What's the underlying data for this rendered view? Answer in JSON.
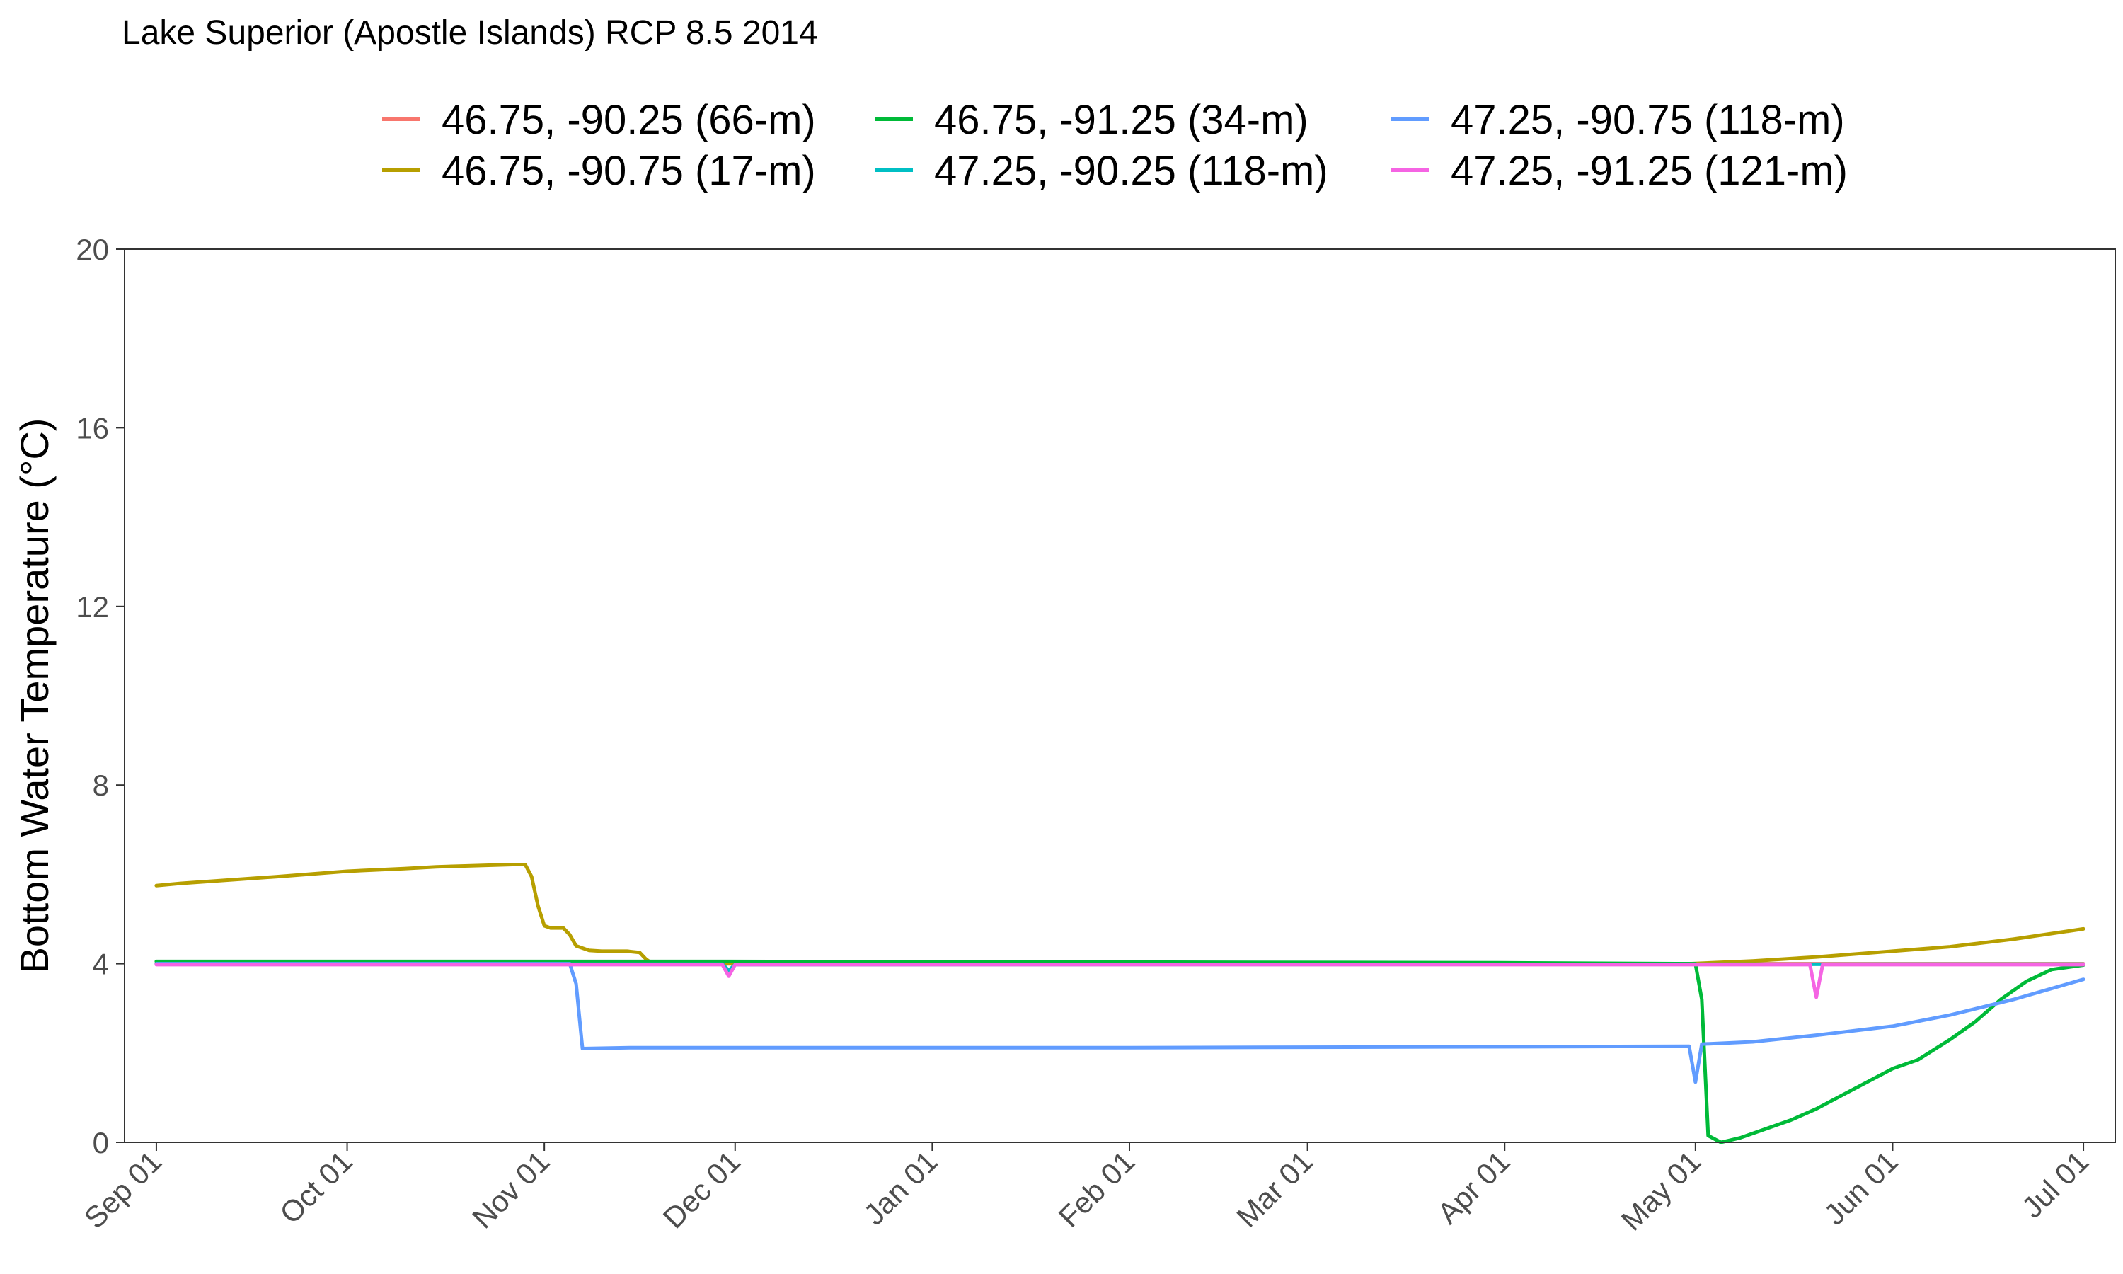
{
  "chart_data": {
    "type": "line",
    "title": "Lake Superior (Apostle Islands) RCP 8.5 2014",
    "xlabel": "",
    "ylabel": "Bottom Water Temperature (°C)",
    "xlim": [
      "2014-08-27",
      "2015-07-06"
    ],
    "ylim": [
      0,
      20
    ],
    "yticks": [
      0,
      4,
      8,
      12,
      16,
      20
    ],
    "xticks": [
      {
        "date": "2014-09-01",
        "label": "Sep 01"
      },
      {
        "date": "2014-10-01",
        "label": "Oct 01"
      },
      {
        "date": "2014-11-01",
        "label": "Nov 01"
      },
      {
        "date": "2014-12-01",
        "label": "Dec 01"
      },
      {
        "date": "2015-01-01",
        "label": "Jan 01"
      },
      {
        "date": "2015-02-01",
        "label": "Feb 01"
      },
      {
        "date": "2015-03-01",
        "label": "Mar 01"
      },
      {
        "date": "2015-04-01",
        "label": "Apr 01"
      },
      {
        "date": "2015-05-01",
        "label": "May 01"
      },
      {
        "date": "2015-06-01",
        "label": "Jun 01"
      },
      {
        "date": "2015-07-01",
        "label": "Jul 01"
      }
    ],
    "grid": false,
    "legend_position": "top",
    "series": [
      {
        "name": "46.75, -90.25 (66-m)",
        "color": "#F8766D",
        "points": [
          [
            "2014-09-01",
            4.0
          ],
          [
            "2015-07-01",
            4.0
          ]
        ]
      },
      {
        "name": "46.75, -90.75 (17-m)",
        "color": "#B79F00",
        "points": [
          [
            "2014-09-01",
            5.75
          ],
          [
            "2014-09-05",
            5.8
          ],
          [
            "2014-09-10",
            5.85
          ],
          [
            "2014-09-20",
            5.95
          ],
          [
            "2014-10-01",
            6.07
          ],
          [
            "2014-10-10",
            6.13
          ],
          [
            "2014-10-15",
            6.17
          ],
          [
            "2014-10-20",
            6.19
          ],
          [
            "2014-10-27",
            6.22
          ],
          [
            "2014-10-29",
            6.22
          ],
          [
            "2014-10-30",
            5.95
          ],
          [
            "2014-10-31",
            5.3
          ],
          [
            "2014-11-01",
            4.85
          ],
          [
            "2014-11-02",
            4.8
          ],
          [
            "2014-11-03",
            4.8
          ],
          [
            "2014-11-04",
            4.8
          ],
          [
            "2014-11-05",
            4.65
          ],
          [
            "2014-11-06",
            4.4
          ],
          [
            "2014-11-08",
            4.3
          ],
          [
            "2014-11-10",
            4.28
          ],
          [
            "2014-11-14",
            4.28
          ],
          [
            "2014-11-16",
            4.25
          ],
          [
            "2014-11-17",
            4.1
          ],
          [
            "2014-11-18",
            4.0
          ],
          [
            "2015-04-30",
            4.0
          ],
          [
            "2015-05-10",
            4.06
          ],
          [
            "2015-05-20",
            4.15
          ],
          [
            "2015-06-01",
            4.28
          ],
          [
            "2015-06-10",
            4.38
          ],
          [
            "2015-06-20",
            4.55
          ],
          [
            "2015-07-01",
            4.78
          ]
        ]
      },
      {
        "name": "46.75, -91.25 (34-m)",
        "color": "#00BA38",
        "points": [
          [
            "2014-09-01",
            4.05
          ],
          [
            "2014-11-30",
            4.05
          ],
          [
            "2015-03-31",
            4.02
          ],
          [
            "2015-05-01",
            4.0
          ],
          [
            "2015-05-02",
            3.2
          ],
          [
            "2015-05-03",
            0.15
          ],
          [
            "2015-05-05",
            0.0
          ],
          [
            "2015-05-08",
            0.1
          ],
          [
            "2015-05-12",
            0.3
          ],
          [
            "2015-05-16",
            0.5
          ],
          [
            "2015-05-20",
            0.75
          ],
          [
            "2015-05-24",
            1.05
          ],
          [
            "2015-05-28",
            1.35
          ],
          [
            "2015-06-01",
            1.65
          ],
          [
            "2015-06-05",
            1.85
          ],
          [
            "2015-06-10",
            2.3
          ],
          [
            "2015-06-14",
            2.7
          ],
          [
            "2015-06-18",
            3.2
          ],
          [
            "2015-06-22",
            3.6
          ],
          [
            "2015-06-26",
            3.87
          ],
          [
            "2015-07-01",
            3.97
          ]
        ]
      },
      {
        "name": "47.25, -90.25 (118-m)",
        "color": "#00BFC4",
        "points": [
          [
            "2014-09-01",
            3.99
          ],
          [
            "2014-11-29",
            3.99
          ],
          [
            "2014-11-30",
            3.85
          ],
          [
            "2014-12-01",
            3.98
          ],
          [
            "2015-07-01",
            3.99
          ]
        ]
      },
      {
        "name": "47.25, -90.75 (118-m)",
        "color": "#619CFF",
        "points": [
          [
            "2014-09-01",
            4.0
          ],
          [
            "2014-11-05",
            4.0
          ],
          [
            "2014-11-06",
            3.55
          ],
          [
            "2014-11-07",
            2.1
          ],
          [
            "2014-11-15",
            2.12
          ],
          [
            "2015-02-01",
            2.12
          ],
          [
            "2015-04-30",
            2.15
          ],
          [
            "2015-05-01",
            1.35
          ],
          [
            "2015-05-02",
            2.2
          ],
          [
            "2015-05-10",
            2.25
          ],
          [
            "2015-05-20",
            2.4
          ],
          [
            "2015-06-01",
            2.6
          ],
          [
            "2015-06-10",
            2.85
          ],
          [
            "2015-06-20",
            3.2
          ],
          [
            "2015-07-01",
            3.65
          ]
        ]
      },
      {
        "name": "47.25, -91.25 (121-m)",
        "color": "#F564E3",
        "points": [
          [
            "2014-09-01",
            3.98
          ],
          [
            "2014-11-29",
            3.98
          ],
          [
            "2014-11-30",
            3.72
          ],
          [
            "2014-12-01",
            3.98
          ],
          [
            "2015-05-19",
            3.98
          ],
          [
            "2015-05-20",
            3.25
          ],
          [
            "2015-05-21",
            3.98
          ],
          [
            "2015-07-01",
            3.98
          ]
        ]
      }
    ]
  }
}
